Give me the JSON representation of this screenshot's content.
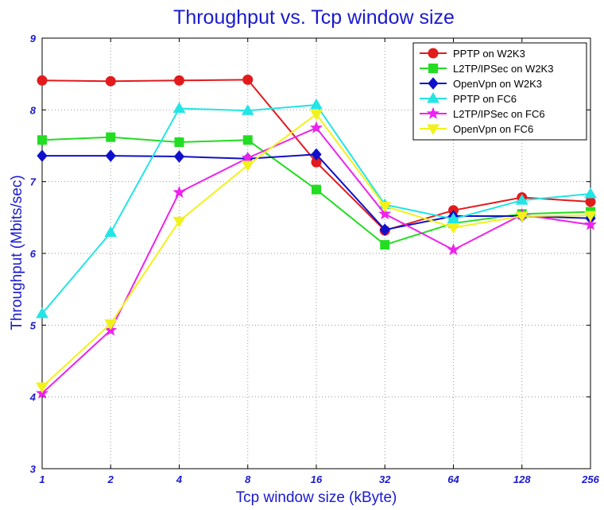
{
  "chart_data": {
    "type": "line",
    "title": "Throughput vs. Tcp window size",
    "xlabel": "Tcp window size (kByte)",
    "ylabel": "Throughput (Mbits/sec)",
    "categories": [
      "1",
      "2",
      "4",
      "8",
      "16",
      "32",
      "64",
      "128",
      "256"
    ],
    "ylim": [
      3,
      9
    ],
    "yticks": [
      "3",
      "4",
      "5",
      "6",
      "7",
      "8",
      "9"
    ],
    "grid": true,
    "legend_position": "top-right",
    "series": [
      {
        "name": "PPTP on W2K3",
        "color": "#e31a1c",
        "marker": "circle",
        "values": [
          8.41,
          8.4,
          8.41,
          8.42,
          7.27,
          6.32,
          6.6,
          6.78,
          6.72
        ]
      },
      {
        "name": "L2TP/IPSec on W2K3",
        "color": "#22dd22",
        "marker": "square",
        "values": [
          7.58,
          7.62,
          7.55,
          7.58,
          6.89,
          6.12,
          6.42,
          6.55,
          6.58
        ]
      },
      {
        "name": "OpenVpn on W2K3",
        "color": "#1010cc",
        "marker": "diamond",
        "values": [
          7.36,
          7.36,
          7.35,
          7.32,
          7.38,
          6.33,
          6.52,
          6.52,
          6.49
        ]
      },
      {
        "name": "PPTP on FC6",
        "color": "#22e5e5",
        "marker": "triangle-up",
        "values": [
          5.16,
          6.29,
          8.02,
          7.99,
          8.07,
          6.68,
          6.48,
          6.74,
          6.83
        ]
      },
      {
        "name": "L2TP/IPSec on FC6",
        "color": "#ee22ee",
        "marker": "star",
        "values": [
          4.05,
          4.93,
          6.85,
          7.33,
          7.75,
          6.55,
          6.05,
          6.54,
          6.4
        ]
      },
      {
        "name": "OpenVpn on FC6",
        "color": "#f2f21a",
        "marker": "triangle-down",
        "values": [
          4.14,
          5.02,
          6.45,
          7.23,
          7.94,
          6.66,
          6.36,
          6.52,
          6.53
        ]
      }
    ]
  }
}
